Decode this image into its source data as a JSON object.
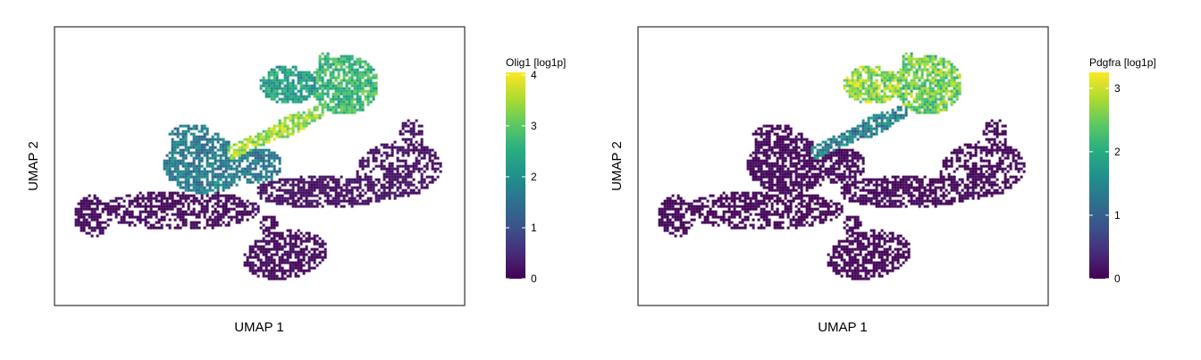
{
  "chart_data": [
    {
      "type": "scatter",
      "subtype": "hexbin UMAP embedding colored by expression",
      "xlabel": "UMAP 1",
      "ylabel": "UMAP 2",
      "legend_title": "Olig1 [log1p]",
      "legend_ticks": [
        "0",
        "1",
        "2",
        "3",
        "4"
      ],
      "legend_tick_values": [
        0,
        1,
        2,
        3,
        4
      ],
      "color_min": 0,
      "color_max": 4.05,
      "colormap": "viridis",
      "legend_position": "right",
      "axis_ticks": "none",
      "grid": false,
      "regions": [
        {
          "region": "top cluster (left lobe)",
          "value": 2.3
        },
        {
          "region": "top cluster (right lobe)",
          "value": 2.7
        },
        {
          "region": "diagonal bridge",
          "value": 3.4
        },
        {
          "region": "central mass",
          "value": 1.7
        },
        {
          "region": "right arm",
          "value": 0.2
        },
        {
          "region": "far-left lobe",
          "value": 0.1
        },
        {
          "region": "bottom lobe",
          "value": 0.1
        }
      ]
    },
    {
      "type": "scatter",
      "subtype": "hexbin UMAP embedding colored by expression",
      "xlabel": "UMAP 1",
      "ylabel": "UMAP 2",
      "legend_title": "Pdgfra [log1p]",
      "legend_ticks": [
        "0",
        "1",
        "2",
        "3"
      ],
      "legend_tick_values": [
        0,
        1,
        2,
        3
      ],
      "color_min": 0,
      "color_max": 3.25,
      "colormap": "viridis",
      "legend_position": "right",
      "axis_ticks": "none",
      "grid": false,
      "regions": [
        {
          "region": "top cluster (left lobe)",
          "value": 2.7
        },
        {
          "region": "top cluster (right lobe)",
          "value": 2.5
        },
        {
          "region": "diagonal bridge",
          "value": 1.4
        },
        {
          "region": "central mass",
          "value": 0.05
        },
        {
          "region": "right arm",
          "value": 0.05
        },
        {
          "region": "far-left lobe",
          "value": 0.02
        },
        {
          "region": "bottom lobe",
          "value": 0.02
        }
      ]
    }
  ]
}
